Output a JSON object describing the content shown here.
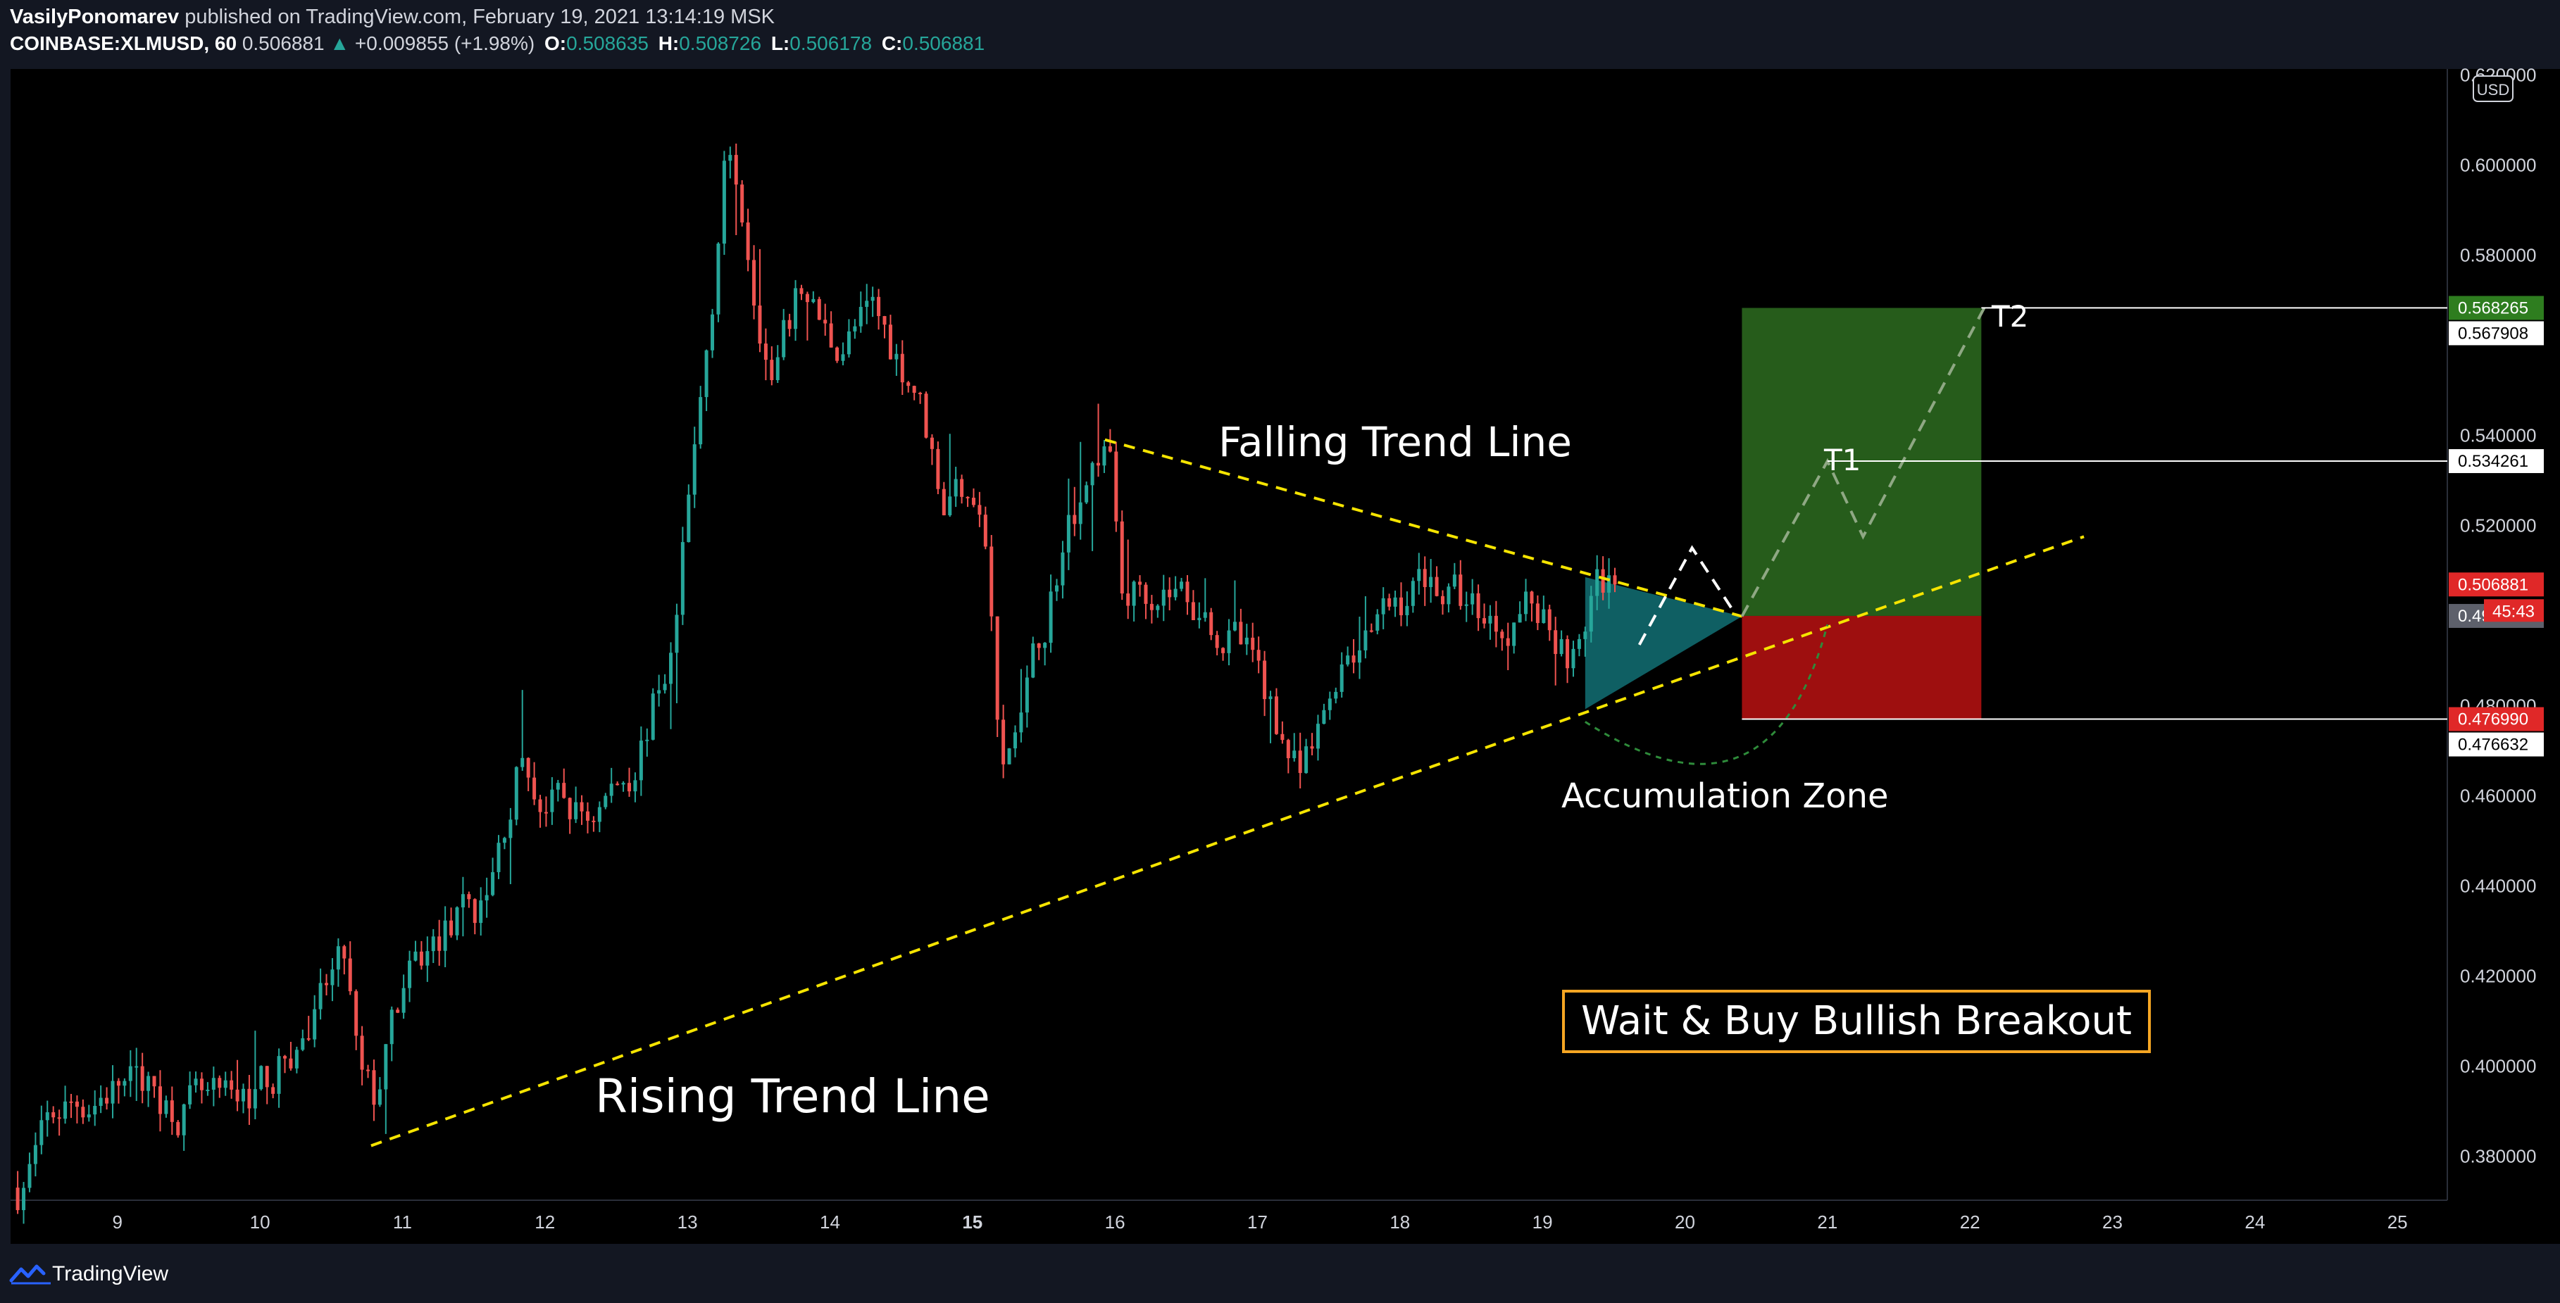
{
  "header": {
    "author": "VasilyPonomarev",
    "published_text": "published on TradingView.com, February 19, 2021 13:14:19 MSK",
    "symbol": "COINBASE:XLMUSD, 60",
    "last": "0.506881",
    "change": "+0.009855 (+1.98%)",
    "o_label": "O:",
    "o_value": "0.508635",
    "h_label": "H:",
    "h_value": "0.508726",
    "l_label": "L:",
    "l_value": "0.506178",
    "c_label": "C:",
    "c_value": "0.506881"
  },
  "footer": {
    "brand": "TradingView"
  },
  "colors": {
    "background": "#000000",
    "up_candle": "#26a69a",
    "down_candle": "#ef5350",
    "trend_line": "#f5e400",
    "target_zone": "#265c1b",
    "stop_zone": "#9e0f0f",
    "accumulation": "#0f5f63",
    "highlight_box": "#f5a623"
  },
  "chart_data": {
    "type": "candlestick",
    "currency_label": "USD",
    "x_ticks": [
      "9",
      "10",
      "11",
      "12",
      "13",
      "14",
      "15",
      "16",
      "17",
      "18",
      "19",
      "20",
      "21",
      "22",
      "23",
      "24",
      "25"
    ],
    "xlim": [
      8.25,
      25.35
    ],
    "ylim": [
      0.3702,
      0.6213
    ],
    "y_ticks": [
      "0.620000",
      "0.600000",
      "0.580000",
      "0.540000",
      "0.520000",
      "0.500000",
      "0.480000",
      "0.460000",
      "0.440000",
      "0.420000",
      "0.400000",
      "0.380000"
    ],
    "price_anchors": [
      [
        8.3,
        0.373
      ],
      [
        8.6,
        0.39
      ],
      [
        9.0,
        0.396
      ],
      [
        9.4,
        0.392
      ],
      [
        9.8,
        0.389
      ],
      [
        10.2,
        0.402
      ],
      [
        10.4,
        0.41
      ],
      [
        10.5,
        0.418
      ],
      [
        10.6,
        0.422
      ],
      [
        10.7,
        0.395
      ],
      [
        10.8,
        0.391
      ],
      [
        11.0,
        0.416
      ],
      [
        11.3,
        0.43
      ],
      [
        11.6,
        0.436
      ],
      [
        11.8,
        0.465
      ],
      [
        12.0,
        0.458
      ],
      [
        12.3,
        0.455
      ],
      [
        12.6,
        0.466
      ],
      [
        12.9,
        0.493
      ],
      [
        13.1,
        0.548
      ],
      [
        13.2,
        0.578
      ],
      [
        13.25,
        0.604
      ],
      [
        13.4,
        0.589
      ],
      [
        13.6,
        0.552
      ],
      [
        13.8,
        0.572
      ],
      [
        14.0,
        0.56
      ],
      [
        14.3,
        0.566
      ],
      [
        14.6,
        0.552
      ],
      [
        14.8,
        0.526
      ],
      [
        15.0,
        0.532
      ],
      [
        15.1,
        0.516
      ],
      [
        15.2,
        0.462
      ],
      [
        15.4,
        0.484
      ],
      [
        15.6,
        0.512
      ],
      [
        15.8,
        0.532
      ],
      [
        15.95,
        0.539
      ],
      [
        16.05,
        0.505
      ],
      [
        16.3,
        0.508
      ],
      [
        16.6,
        0.503
      ],
      [
        16.9,
        0.492
      ],
      [
        17.1,
        0.48
      ],
      [
        17.3,
        0.463
      ],
      [
        17.4,
        0.468
      ],
      [
        17.6,
        0.493
      ],
      [
        17.9,
        0.499
      ],
      [
        18.2,
        0.51
      ],
      [
        18.4,
        0.504
      ],
      [
        18.7,
        0.499
      ],
      [
        18.9,
        0.504
      ],
      [
        19.1,
        0.497
      ],
      [
        19.25,
        0.49
      ],
      [
        19.35,
        0.505
      ],
      [
        19.45,
        0.507
      ],
      [
        19.52,
        0.507
      ]
    ],
    "last_price": 0.506881,
    "price_labels": [
      {
        "value": 0.568265,
        "text": "0.568265",
        "style": "target"
      },
      {
        "value": 0.567908,
        "text": "0.567908",
        "style": "white"
      },
      {
        "value": 0.534261,
        "text": "0.534261",
        "style": "white"
      },
      {
        "value": 0.506881,
        "text": "0.506881",
        "style": "last"
      },
      {
        "value": 0.499898,
        "text": "0.499898",
        "style": "gray"
      },
      {
        "value": 0.47699,
        "text": "0.476990",
        "style": "stop"
      },
      {
        "value": 0.476632,
        "text": "0.476632",
        "style": "white"
      }
    ],
    "countdown": "45:43",
    "falling_trend_line": [
      [
        15.93,
        0.539
      ],
      [
        19.4,
        0.5085
      ],
      [
        20.4,
        0.4998
      ]
    ],
    "rising_trend_line": [
      [
        10.78,
        0.3823
      ],
      [
        17.35,
        0.4567
      ],
      [
        22.8,
        0.5175
      ]
    ],
    "accumulation_zone": [
      [
        19.3,
        0.5085
      ],
      [
        19.3,
        0.4792
      ],
      [
        20.4,
        0.4998
      ]
    ],
    "projection_white": [
      [
        19.68,
        0.4935
      ],
      [
        20.05,
        0.515
      ],
      [
        20.35,
        0.5005
      ]
    ],
    "projection_green": [
      [
        20.4,
        0.4998
      ],
      [
        21.0,
        0.534261
      ],
      [
        21.25,
        0.5175
      ],
      [
        22.1,
        0.568265
      ]
    ],
    "projection_curve": {
      "start": [
        19.3,
        0.4764
      ],
      "control": [
        20.6,
        0.45
      ],
      "end": [
        21.0,
        0.498
      ]
    },
    "position": {
      "x_start": 20.4,
      "x_end": 22.08,
      "entry": 0.499898,
      "target": 0.568265,
      "stop": 0.47699
    },
    "level_lines": [
      {
        "x_start": 22.08,
        "value": 0.568265
      },
      {
        "x_start": 21.0,
        "value": 0.534261
      },
      {
        "x_start": 20.4,
        "value": 0.47699
      }
    ],
    "annotations": {
      "falling": "Falling Trend Line",
      "rising": "Rising Trend Line",
      "accumulation": "Accumulation Zone",
      "t1": "T1",
      "t2": "T2",
      "callout": "Wait & Buy Bullish Breakout"
    }
  }
}
